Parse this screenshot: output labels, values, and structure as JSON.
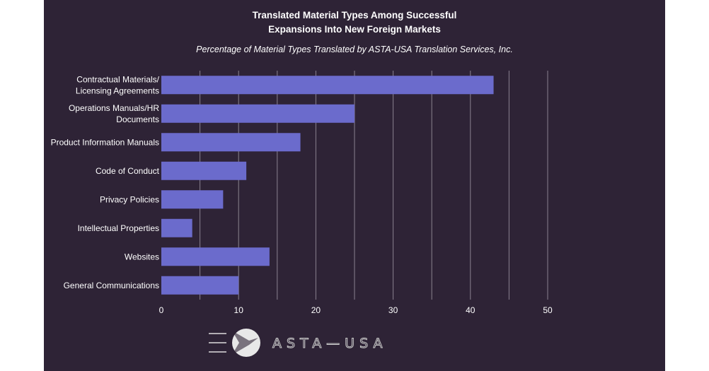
{
  "chart_data": {
    "type": "bar",
    "orientation": "horizontal",
    "title": "Translated Material Types Among Successful Expansions Into New Foreign Markets",
    "title_lines": [
      "Translated Material Types Among Successful",
      "Expansions Into New Foreign Markets"
    ],
    "subtitle": "Percentage of Material Types Translated by ASTA-USA Translation Services, Inc.",
    "categories": [
      [
        "Contractual Materials/",
        "Licensing Agreements"
      ],
      [
        "Operations Manuals/HR",
        "Documents"
      ],
      [
        "Product Information Manuals"
      ],
      [
        "Code of Conduct"
      ],
      [
        "Privacy Policies"
      ],
      [
        "Intellectual Properties"
      ],
      [
        "Websites"
      ],
      [
        "General Communications"
      ]
    ],
    "values": [
      43,
      25,
      18,
      11,
      8,
      4,
      14,
      10
    ],
    "xlim": [
      0,
      50
    ],
    "xticks": [
      "0",
      "10",
      "20",
      "30",
      "40",
      "50"
    ],
    "grid": true,
    "xlabel": "",
    "ylabel": "",
    "colors": {
      "bar": "#6b6bcc",
      "background": "#2e2336",
      "grid": "#8a8290",
      "text": "#ffffff"
    }
  },
  "logo": {
    "text": "ASTA—USA"
  }
}
